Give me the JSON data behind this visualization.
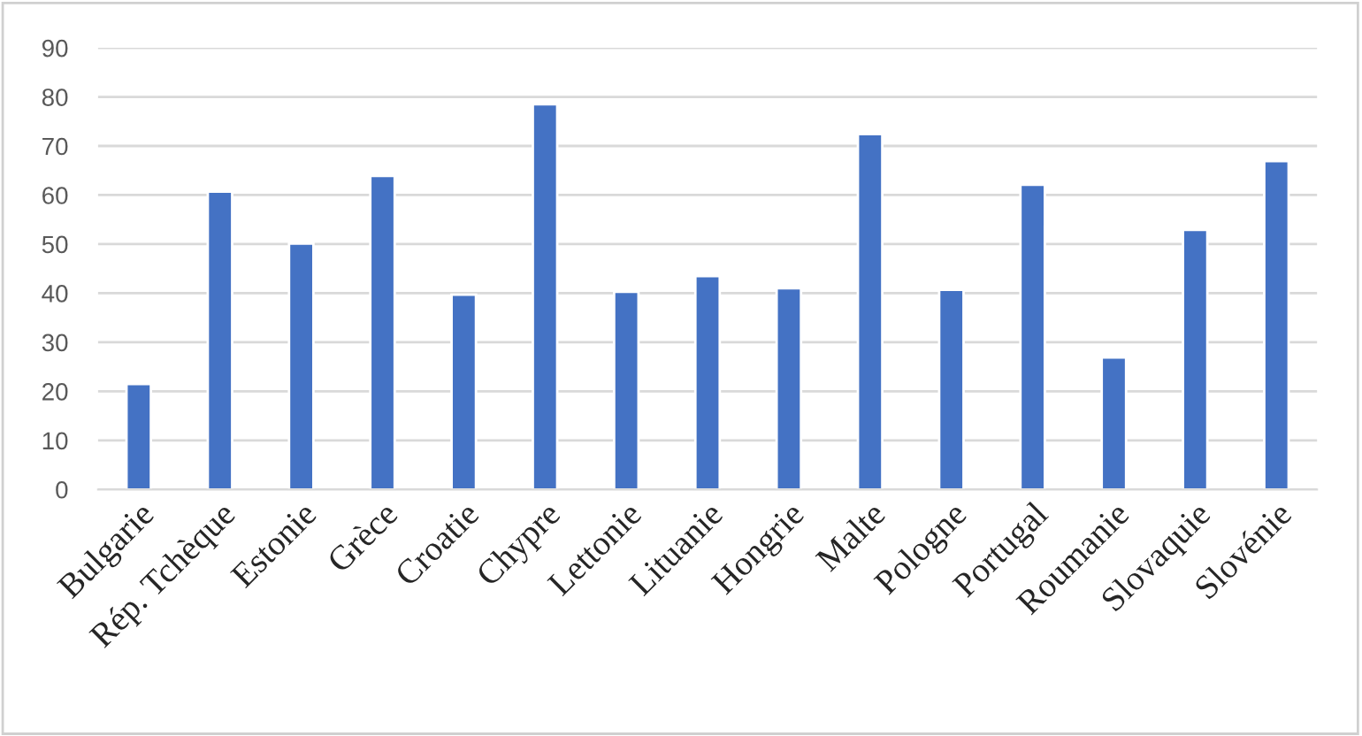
{
  "chart_data": {
    "type": "bar",
    "categories": [
      "Bulgarie",
      "Rép. Tchèque",
      "Estonie",
      "Grèce",
      "Croatie",
      "Chypre",
      "Lettonie",
      "Lituanie",
      "Hongrie",
      "Malte",
      "Pologne",
      "Portugal",
      "Roumanie",
      "Slovaquie",
      "Slovénie"
    ],
    "values": [
      21.5,
      60.7,
      50.1,
      63.9,
      39.7,
      78.5,
      40.3,
      43.5,
      41.0,
      72.4,
      40.7,
      62.1,
      26.9,
      52.9,
      66.9
    ],
    "color": "#4472c4",
    "ylim": [
      0,
      90
    ],
    "yticks": [
      0,
      10,
      20,
      30,
      40,
      50,
      60,
      70,
      80,
      90
    ],
    "grid": "y",
    "legend": false
  }
}
